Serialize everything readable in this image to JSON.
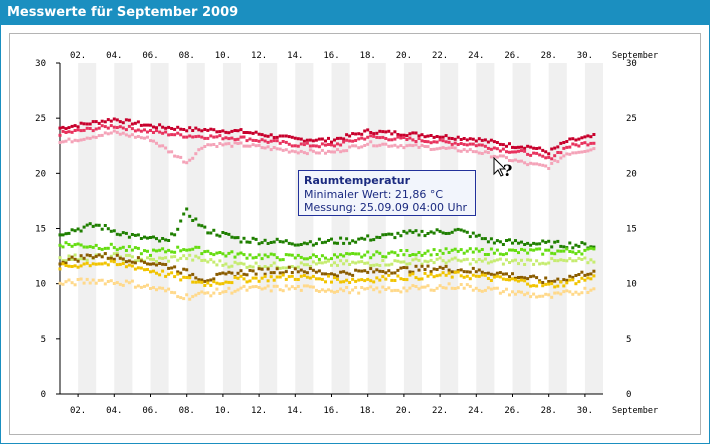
{
  "window": {
    "title": "Messwerte für September 2009"
  },
  "chart_data": {
    "type": "scatter",
    "x_unit_label": "September",
    "x_day_labels": [
      "02.",
      "04.",
      "06.",
      "08.",
      "10.",
      "12.",
      "14.",
      "16.",
      "18.",
      "20.",
      "22.",
      "24.",
      "26.",
      "28.",
      "30."
    ],
    "y_ticks": [
      0,
      5,
      10,
      15,
      20,
      25,
      30
    ],
    "ylim": [
      0,
      30
    ],
    "xlim_days": [
      1,
      31
    ],
    "grid_bands": "alternating daily shading",
    "series_colors": {
      "raum_max": "#c8002c",
      "raum_avg": "#e8335e",
      "raum_min": "#f4a3b8",
      "out_max": "#1f7f00",
      "out_2": "#66dd11",
      "out_3": "#c6ec70",
      "out_4": "#8a5c00",
      "out_5": "#f1c400",
      "out_min": "#ffd98a"
    },
    "series_profiles": [
      {
        "name": "raum_max",
        "points": [
          [
            1,
            24.1
          ],
          [
            4,
            24.9
          ],
          [
            6,
            24.3
          ],
          [
            8,
            24.0
          ],
          [
            11,
            23.8
          ],
          [
            14,
            23.1
          ],
          [
            16,
            23.0
          ],
          [
            18,
            23.8
          ],
          [
            21,
            23.5
          ],
          [
            24,
            23.1
          ],
          [
            26,
            22.5
          ],
          [
            27,
            22.4
          ],
          [
            28,
            21.9
          ],
          [
            29,
            22.9
          ],
          [
            31,
            23.5
          ]
        ]
      },
      {
        "name": "raum_avg",
        "points": [
          [
            1,
            23.6
          ],
          [
            4,
            24.3
          ],
          [
            6,
            23.8
          ],
          [
            8,
            23.4
          ],
          [
            11,
            23.2
          ],
          [
            14,
            22.6
          ],
          [
            16,
            22.5
          ],
          [
            18,
            23.3
          ],
          [
            21,
            23.0
          ],
          [
            24,
            22.6
          ],
          [
            26,
            22.0
          ],
          [
            27,
            21.8
          ],
          [
            28,
            21.3
          ],
          [
            29,
            22.4
          ],
          [
            31,
            23.0
          ]
        ]
      },
      {
        "name": "raum_min",
        "points": [
          [
            1,
            22.8
          ],
          [
            4,
            23.7
          ],
          [
            6,
            23.1
          ],
          [
            8,
            21.0
          ],
          [
            9,
            22.6
          ],
          [
            11,
            22.6
          ],
          [
            14,
            22.0
          ],
          [
            16,
            21.9
          ],
          [
            18,
            22.7
          ],
          [
            21,
            22.4
          ],
          [
            24,
            22.0
          ],
          [
            26,
            21.2
          ],
          [
            27,
            20.8
          ],
          [
            28,
            20.6
          ],
          [
            29,
            21.8
          ],
          [
            31,
            22.4
          ]
        ]
      },
      {
        "name": "out_max",
        "points": [
          [
            1,
            14.6
          ],
          [
            3,
            15.3
          ],
          [
            5,
            14.3
          ],
          [
            7,
            13.8
          ],
          [
            8,
            16.5
          ],
          [
            9,
            14.9
          ],
          [
            11,
            14.0
          ],
          [
            14,
            13.7
          ],
          [
            17,
            13.9
          ],
          [
            20,
            14.5
          ],
          [
            23,
            14.8
          ],
          [
            25,
            13.8
          ],
          [
            28,
            13.6
          ],
          [
            31,
            13.4
          ]
        ]
      },
      {
        "name": "out_2",
        "points": [
          [
            1,
            13.6
          ],
          [
            4,
            13.3
          ],
          [
            6,
            12.8
          ],
          [
            8,
            13.2
          ],
          [
            10,
            12.7
          ],
          [
            13,
            12.4
          ],
          [
            16,
            12.4
          ],
          [
            19,
            12.7
          ],
          [
            22,
            12.9
          ],
          [
            25,
            12.9
          ],
          [
            28,
            12.9
          ],
          [
            31,
            13.0
          ]
        ]
      },
      {
        "name": "out_3",
        "points": [
          [
            1,
            12.3
          ],
          [
            4,
            12.5
          ],
          [
            6,
            12.1
          ],
          [
            8,
            12.4
          ],
          [
            10,
            11.8
          ],
          [
            13,
            11.6
          ],
          [
            16,
            11.8
          ],
          [
            19,
            11.9
          ],
          [
            22,
            12.1
          ],
          [
            25,
            12.0
          ],
          [
            28,
            12.0
          ],
          [
            31,
            12.1
          ]
        ]
      },
      {
        "name": "out_4",
        "points": [
          [
            1,
            12.0
          ],
          [
            3,
            12.6
          ],
          [
            5,
            12.2
          ],
          [
            7,
            11.6
          ],
          [
            9,
            10.4
          ],
          [
            11,
            11.0
          ],
          [
            14,
            11.3
          ],
          [
            16,
            10.9
          ],
          [
            19,
            11.2
          ],
          [
            22,
            11.4
          ],
          [
            25,
            11.0
          ],
          [
            28,
            10.2
          ],
          [
            29,
            10.5
          ],
          [
            31,
            11.4
          ]
        ]
      },
      {
        "name": "out_5",
        "points": [
          [
            1,
            11.5
          ],
          [
            3,
            11.9
          ],
          [
            5,
            11.6
          ],
          [
            7,
            10.8
          ],
          [
            9,
            10.0
          ],
          [
            11,
            10.4
          ],
          [
            14,
            10.6
          ],
          [
            17,
            10.3
          ],
          [
            20,
            10.6
          ],
          [
            23,
            10.8
          ],
          [
            26,
            10.3
          ],
          [
            28,
            9.8
          ],
          [
            29,
            10.1
          ],
          [
            31,
            10.7
          ]
        ]
      },
      {
        "name": "out_min",
        "points": [
          [
            1,
            10.0
          ],
          [
            3,
            10.3
          ],
          [
            5,
            10.0
          ],
          [
            7,
            9.3
          ],
          [
            8,
            8.8
          ],
          [
            9,
            9.1
          ],
          [
            11,
            9.5
          ],
          [
            14,
            9.6
          ],
          [
            17,
            9.4
          ],
          [
            20,
            9.5
          ],
          [
            23,
            9.8
          ],
          [
            26,
            9.2
          ],
          [
            28,
            8.8
          ],
          [
            30,
            9.4
          ],
          [
            31,
            9.7
          ]
        ]
      }
    ],
    "tooltip": {
      "title": "Raumtemperatur",
      "line1": "Minimaler Wert: 21,86 °C",
      "line2": "Messung: 25.09.09 04:00 Uhr"
    },
    "cursor_icon": "help-cursor-icon"
  }
}
